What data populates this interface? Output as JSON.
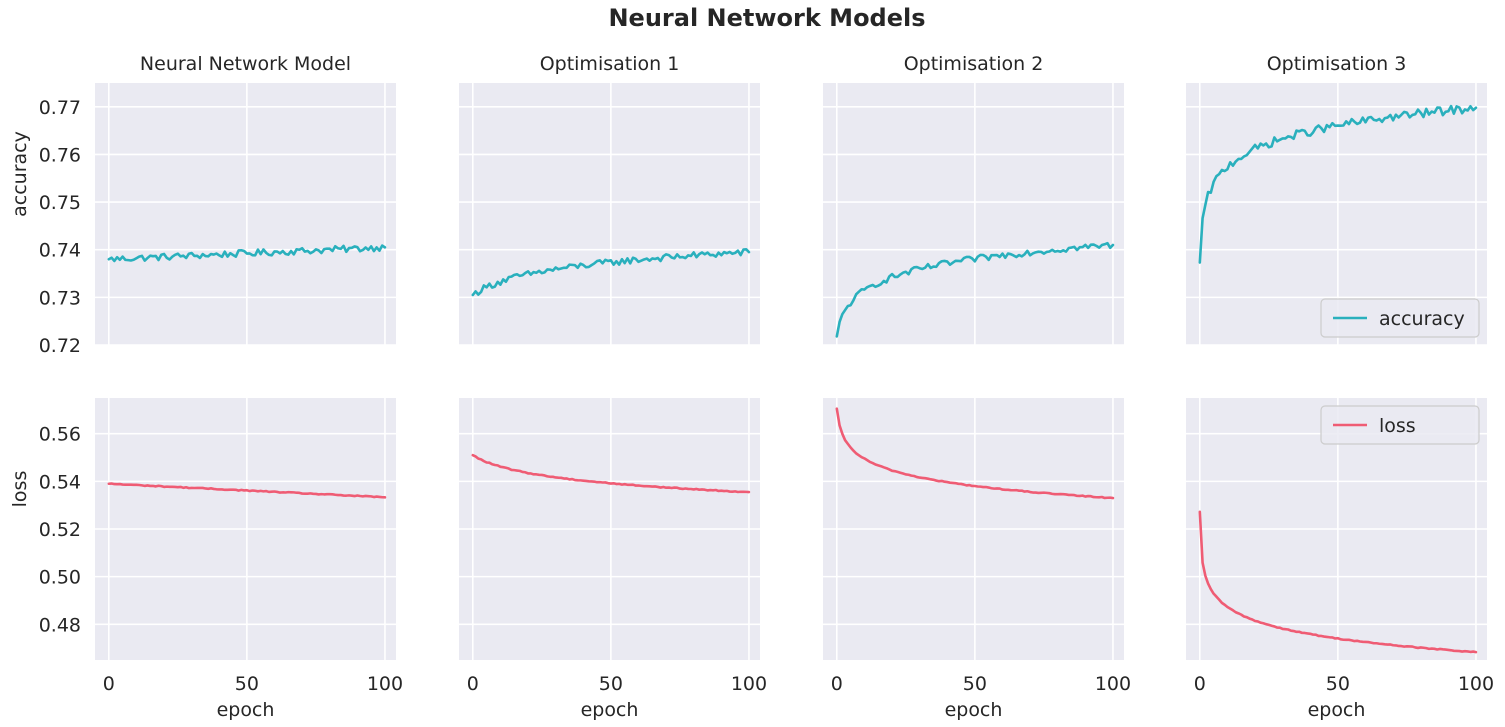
{
  "figure": {
    "title": "Neural Network Models",
    "background": "#ffffff",
    "panel_background": "#eaeaf2",
    "grid_color": "#ffffff",
    "accuracy_color": "#2ab0bd",
    "loss_color": "#ef5c74"
  },
  "chart_data": [
    {
      "type": "line",
      "title": "Neural Network Model",
      "metric": "accuracy",
      "xlabel": "",
      "ylabel": "accuracy",
      "xlim": [
        -5,
        104
      ],
      "ylim": [
        0.72,
        0.775
      ],
      "xticks": [
        0,
        50,
        100
      ],
      "yticks": [
        0.72,
        0.73,
        0.74,
        0.75,
        0.76,
        0.77
      ],
      "ytick_labels": [
        "0.72",
        "0.73",
        "0.74",
        "0.75",
        "0.76",
        "0.77"
      ],
      "grid": true,
      "legend": null,
      "series": [
        {
          "start": 0.738,
          "end": 0.7405,
          "shape": "linear",
          "k": 0,
          "noise": 0.0007
        }
      ]
    },
    {
      "type": "line",
      "title": "Optimisation 1",
      "metric": "accuracy",
      "xlabel": "",
      "ylabel": "",
      "xlim": [
        -5,
        104
      ],
      "ylim": [
        0.72,
        0.775
      ],
      "xticks": [
        0,
        50,
        100
      ],
      "yticks": [
        0.72,
        0.73,
        0.74,
        0.75,
        0.76,
        0.77
      ],
      "grid": true,
      "legend": null,
      "series": [
        {
          "start": 0.7305,
          "end": 0.7395,
          "shape": "log",
          "k": 8,
          "noise": 0.0007
        }
      ]
    },
    {
      "type": "line",
      "title": "Optimisation 2",
      "metric": "accuracy",
      "xlabel": "",
      "ylabel": "",
      "xlim": [
        -5,
        104
      ],
      "ylim": [
        0.72,
        0.775
      ],
      "xticks": [
        0,
        50,
        100
      ],
      "yticks": [
        0.72,
        0.73,
        0.74,
        0.75,
        0.76,
        0.77
      ],
      "grid": true,
      "legend": null,
      "series": [
        {
          "start": 0.7218,
          "end": 0.741,
          "shape": "log",
          "k": 1.2,
          "noise": 0.0007
        }
      ]
    },
    {
      "type": "line",
      "title": "Optimisation 3",
      "metric": "accuracy",
      "xlabel": "",
      "ylabel": "",
      "xlim": [
        -5,
        104
      ],
      "ylim": [
        0.72,
        0.775
      ],
      "xticks": [
        0,
        50,
        100
      ],
      "yticks": [
        0.72,
        0.73,
        0.74,
        0.75,
        0.76,
        0.77
      ],
      "grid": true,
      "legend": "lower right",
      "series": [
        {
          "name": "accuracy",
          "start": 0.7373,
          "end": 0.7698,
          "shape": "log",
          "k": 0.25,
          "noise": 0.0009
        }
      ]
    },
    {
      "type": "line",
      "title": "",
      "metric": "loss",
      "xlabel": "epoch",
      "ylabel": "loss",
      "xlim": [
        -5,
        104
      ],
      "ylim": [
        0.465,
        0.575
      ],
      "xticks": [
        0,
        50,
        100
      ],
      "xtick_labels": [
        "0",
        "50",
        "100"
      ],
      "yticks": [
        0.48,
        0.5,
        0.52,
        0.54,
        0.56
      ],
      "ytick_labels": [
        "0.48",
        "0.50",
        "0.52",
        "0.54",
        "0.56"
      ],
      "grid": true,
      "legend": null,
      "series": [
        {
          "start": 0.539,
          "end": 0.5333,
          "shape": "linear",
          "k": 0,
          "noise": 0.0002
        }
      ]
    },
    {
      "type": "line",
      "title": "",
      "metric": "loss",
      "xlabel": "epoch",
      "ylabel": "",
      "xlim": [
        -5,
        104
      ],
      "ylim": [
        0.465,
        0.575
      ],
      "xticks": [
        0,
        50,
        100
      ],
      "xtick_labels": [
        "0",
        "50",
        "100"
      ],
      "yticks": [
        0.48,
        0.5,
        0.52,
        0.54,
        0.56
      ],
      "grid": true,
      "legend": null,
      "series": [
        {
          "start": 0.551,
          "end": 0.5355,
          "shape": "log",
          "k": 8,
          "noise": 0.0002
        }
      ]
    },
    {
      "type": "line",
      "title": "",
      "metric": "loss",
      "xlabel": "epoch",
      "ylabel": "",
      "xlim": [
        -5,
        104
      ],
      "ylim": [
        0.465,
        0.575
      ],
      "xticks": [
        0,
        50,
        100
      ],
      "xtick_labels": [
        "0",
        "50",
        "100"
      ],
      "yticks": [
        0.48,
        0.5,
        0.52,
        0.54,
        0.56
      ],
      "grid": true,
      "legend": null,
      "series": [
        {
          "start": 0.5705,
          "end": 0.533,
          "shape": "log",
          "k": 0.6,
          "noise": 0.0002
        }
      ]
    },
    {
      "type": "line",
      "title": "",
      "metric": "loss",
      "xlabel": "epoch",
      "ylabel": "",
      "xlim": [
        -5,
        104
      ],
      "ylim": [
        0.465,
        0.575
      ],
      "xticks": [
        0,
        50,
        100
      ],
      "xtick_labels": [
        "0",
        "50",
        "100"
      ],
      "yticks": [
        0.48,
        0.5,
        0.52,
        0.54,
        0.56
      ],
      "grid": true,
      "legend": "upper right",
      "series": [
        {
          "name": "loss",
          "start": 0.5272,
          "end": 0.4683,
          "shape": "log",
          "k": 0.08,
          "noise": 0.0002
        }
      ]
    }
  ]
}
